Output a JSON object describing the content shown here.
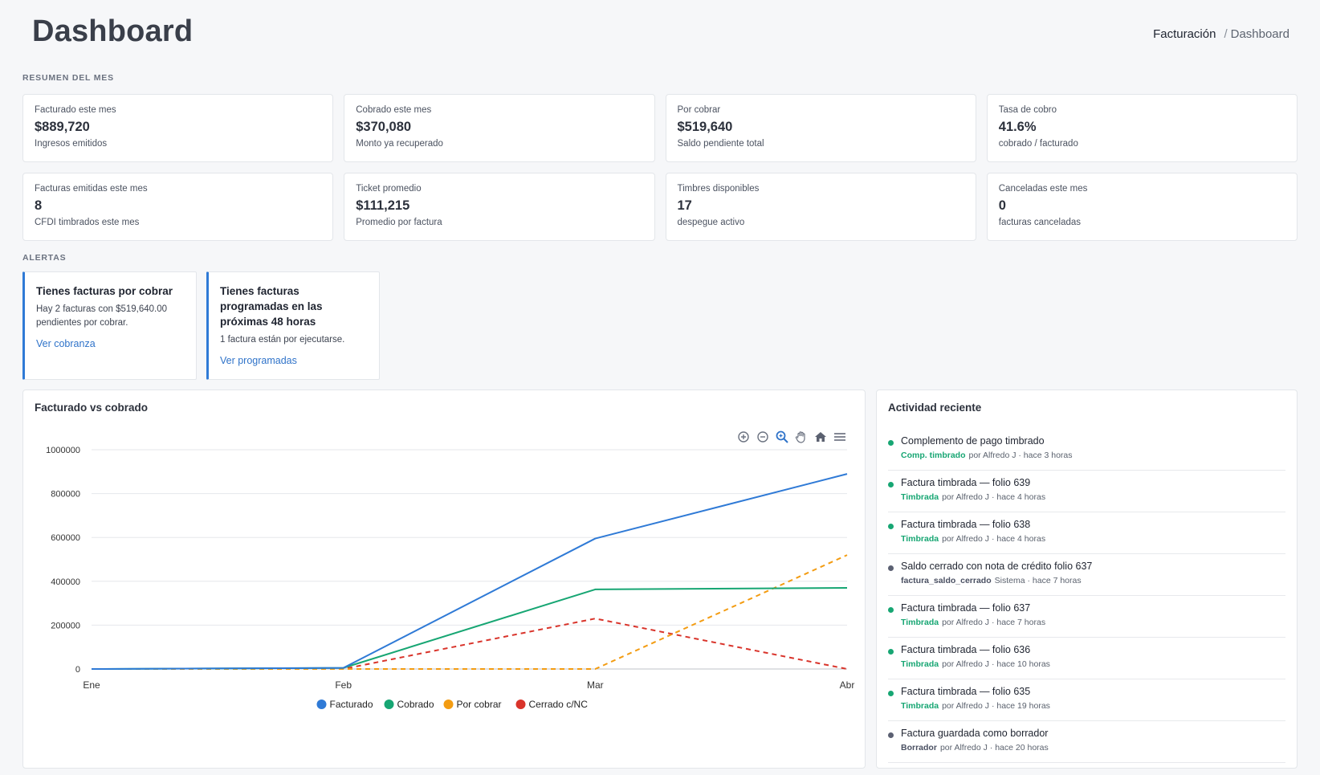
{
  "header": {
    "title": "Dashboard",
    "breadcrumb": [
      "Facturación",
      "/",
      "Dashboard"
    ]
  },
  "summary": {
    "label": "RESUMEN DEL MES",
    "cards": [
      {
        "title": "Facturado este mes",
        "value": "$889,720",
        "sub": "Ingresos emitidos"
      },
      {
        "title": "Cobrado este mes",
        "value": "$370,080",
        "sub": "Monto ya recuperado"
      },
      {
        "title": "Por cobrar",
        "value": "$519,640",
        "sub": "Saldo pendiente total"
      },
      {
        "title": "Tasa de cobro",
        "value": "41.6%",
        "sub": "cobrado / facturado"
      },
      {
        "title": "Facturas emitidas este mes",
        "value": "8",
        "sub": "CFDI timbrados este mes"
      },
      {
        "title": "Ticket promedio",
        "value": "$111,215",
        "sub": "Promedio por factura"
      },
      {
        "title": "Timbres disponibles",
        "value": "17",
        "sub": "despegue activo"
      },
      {
        "title": "Canceladas este mes",
        "value": "0",
        "sub": "facturas canceladas"
      }
    ]
  },
  "alerts": {
    "label": "ALERTAS",
    "items": [
      {
        "title": "Tienes facturas por cobrar",
        "body": "Hay 2 facturas con $519,640.00 pendientes por cobrar.",
        "link": "Ver cobranza"
      },
      {
        "title": "Tienes facturas programadas en las próximas 48 horas",
        "body": "1 factura están por ejecutarse.",
        "link": "Ver programadas"
      }
    ]
  },
  "chart_panel": {
    "title": "Facturado vs cobrado",
    "toolbar_icons": [
      "zoom-in-icon",
      "zoom-out-icon",
      "zoom-selection-icon",
      "pan-hand-icon",
      "reset-home-icon",
      "menu-icon"
    ]
  },
  "chart_data": {
    "type": "line",
    "title": "Facturado vs cobrado",
    "categories": [
      "Ene",
      "Feb",
      "Mar",
      "Abr"
    ],
    "ylim": [
      0,
      1000000
    ],
    "yticks": [
      0,
      200000,
      400000,
      600000,
      800000,
      1000000
    ],
    "grid": true,
    "legend_position": "bottom",
    "series": [
      {
        "name": "Facturado",
        "color": "#2f7ad6",
        "dashed": false,
        "values": [
          0,
          5000,
          595000,
          889720
        ]
      },
      {
        "name": "Cobrado",
        "color": "#17a673",
        "dashed": false,
        "values": [
          0,
          5000,
          363000,
          370080
        ]
      },
      {
        "name": "Por cobrar",
        "color": "#f39c12",
        "dashed": true,
        "values": [
          0,
          0,
          0,
          519640
        ]
      },
      {
        "name": "Cerrado c/NC",
        "color": "#d9342b",
        "dashed": true,
        "values": [
          0,
          0,
          230000,
          0
        ]
      }
    ]
  },
  "activity": {
    "title": "Actividad reciente",
    "items": [
      {
        "title": "Complemento de pago timbrado",
        "tag": "Comp. timbrado",
        "meta": "por Alfredo J · hace 3 horas",
        "dot": "#17a673",
        "tag_color": "#17a673"
      },
      {
        "title": "Factura timbrada — folio 639",
        "tag": "Timbrada",
        "meta": "por Alfredo J · hace 4 horas",
        "dot": "#17a673",
        "tag_color": "#17a673"
      },
      {
        "title": "Factura timbrada — folio 638",
        "tag": "Timbrada",
        "meta": "por Alfredo J · hace 4 horas",
        "dot": "#17a673",
        "tag_color": "#17a673"
      },
      {
        "title": "Saldo cerrado con nota de crédito folio 637",
        "tag": "factura_saldo_cerrado",
        "meta": "Sistema · hace 7 horas",
        "dot": "#5b6072",
        "tag_color": "#4a5062"
      },
      {
        "title": "Factura timbrada — folio 637",
        "tag": "Timbrada",
        "meta": "por Alfredo J · hace 7 horas",
        "dot": "#17a673",
        "tag_color": "#17a673"
      },
      {
        "title": "Factura timbrada — folio 636",
        "tag": "Timbrada",
        "meta": "por Alfredo J · hace 10 horas",
        "dot": "#17a673",
        "tag_color": "#17a673"
      },
      {
        "title": "Factura timbrada — folio 635",
        "tag": "Timbrada",
        "meta": "por Alfredo J · hace 19 horas",
        "dot": "#17a673",
        "tag_color": "#17a673"
      },
      {
        "title": "Factura guardada como borrador",
        "tag": "Borrador",
        "meta": "por Alfredo J · hace 20 horas",
        "dot": "#5b6072",
        "tag_color": "#4a5062"
      }
    ]
  }
}
